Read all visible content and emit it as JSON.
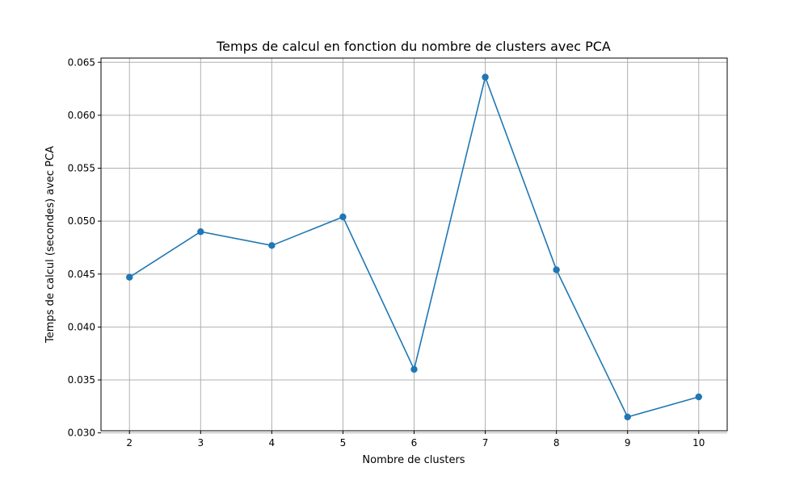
{
  "chart_data": {
    "type": "line",
    "title": "Temps de calcul en fonction du nombre de clusters avec PCA",
    "xlabel": "Nombre de clusters",
    "ylabel": "Temps de calcul (secondes) avec PCA",
    "x": [
      2,
      3,
      4,
      5,
      6,
      7,
      8,
      9,
      10
    ],
    "series": [
      {
        "values": [
          0.0447,
          0.049,
          0.0477,
          0.0504,
          0.036,
          0.0636,
          0.0454,
          0.0315,
          0.0334
        ],
        "color": "#1f77b4",
        "marker": "circle"
      }
    ],
    "xlim": [
      1.6,
      10.4
    ],
    "ylim": [
      0.0302,
      0.0654
    ],
    "xticks": [
      "2",
      "3",
      "4",
      "5",
      "6",
      "7",
      "8",
      "9",
      "10"
    ],
    "yticks": [
      "0.030",
      "0.035",
      "0.040",
      "0.045",
      "0.050",
      "0.055",
      "0.060",
      "0.065"
    ],
    "grid": true,
    "legend": "none"
  }
}
